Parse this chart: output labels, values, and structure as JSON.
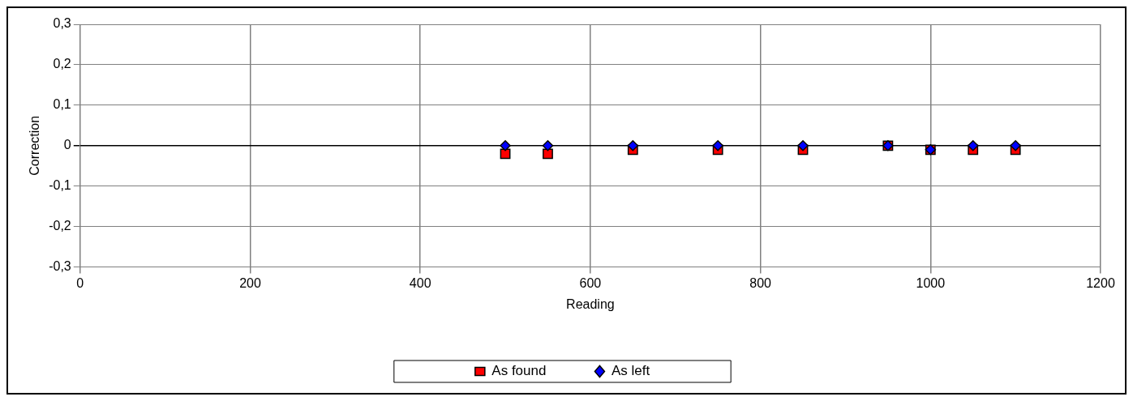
{
  "chart_data": {
    "type": "scatter",
    "xlabel": "Reading",
    "ylabel": "Correction",
    "xlim": [
      0,
      1200
    ],
    "xticks": [
      0,
      200,
      400,
      600,
      800,
      1000,
      1200
    ],
    "ylim": [
      -0.3,
      0.3
    ],
    "yticks": [
      {
        "value": -0.3,
        "label": "-0,3"
      },
      {
        "value": -0.2,
        "label": "-0,2"
      },
      {
        "value": -0.1,
        "label": "-0,1"
      },
      0,
      {
        "value": 0.1,
        "label": "0,1"
      },
      {
        "value": 0.2,
        "label": "0,2"
      },
      {
        "value": 0.3,
        "label": "0,3"
      }
    ],
    "x": [
      500,
      550,
      650,
      750,
      850,
      950,
      1000,
      1050,
      1100
    ],
    "series": [
      {
        "name": "As found",
        "color": "#ff0000",
        "marker": "square",
        "values": [
          -0.02,
          -0.02,
          -0.01,
          -0.01,
          -0.01,
          0,
          -0.01,
          -0.01,
          -0.01
        ]
      },
      {
        "name": "As left",
        "color": "#0000ff",
        "marker": "diamond",
        "values": [
          0,
          0,
          0,
          0,
          0,
          0,
          -0.01,
          0,
          0
        ]
      }
    ],
    "grid": true,
    "legend": "bottom"
  }
}
